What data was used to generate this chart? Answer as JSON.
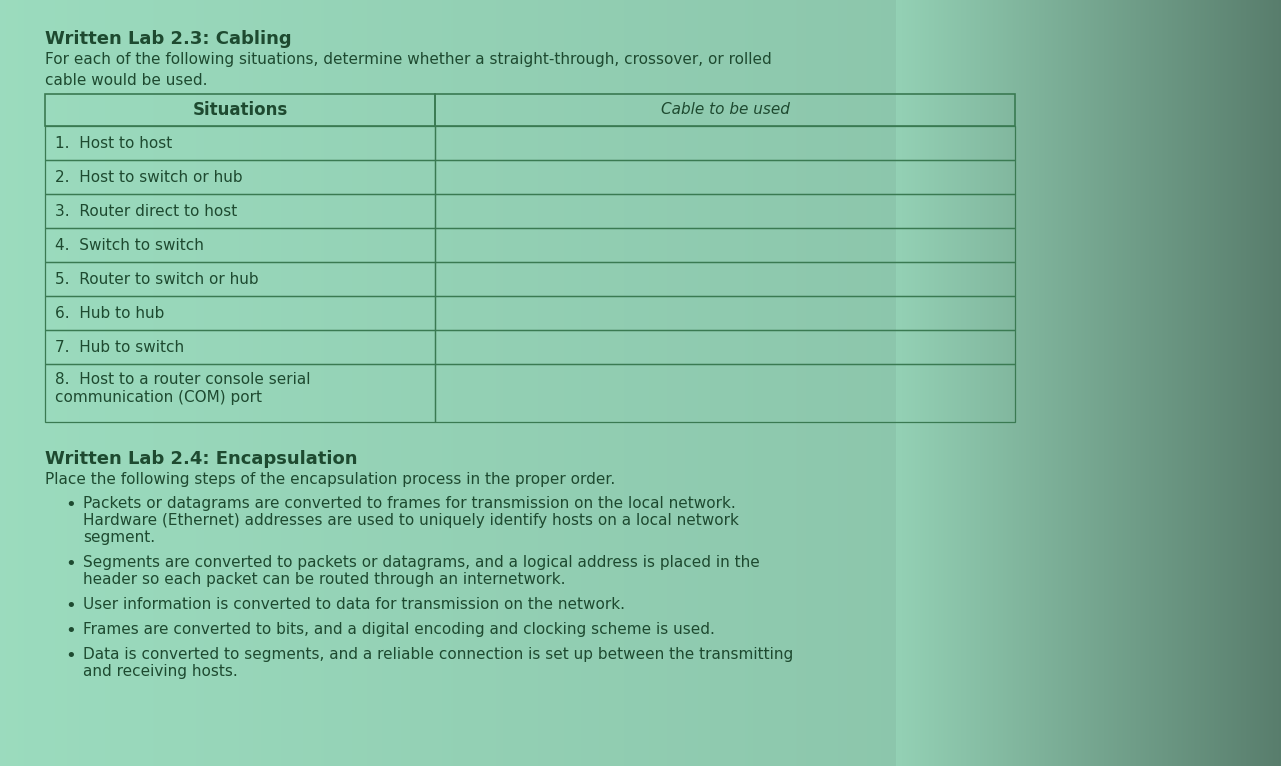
{
  "bg_color_main": "#7ecfa4",
  "bg_color_light": "#aae8c4",
  "bg_color_dark": "#4a9e6e",
  "text_color": "#1e4a30",
  "table_border_color": "#3a7a52",
  "title1": "Written Lab 2.3: Cabling",
  "subtitle1": "For each of the following situations, determine whether a straight-through, crossover, or rolled",
  "subtitle1b": "cable would be used.",
  "col1_header": "Situations",
  "col2_header": "Cable to be used",
  "rows": [
    "1.  Host to host",
    "2.  Host to switch or hub",
    "3.  Router direct to host",
    "4.  Switch to switch",
    "5.  Router to switch or hub",
    "6.  Hub to hub",
    "7.  Hub to switch",
    "8.  Host to a router console serial\ncommunication (COM) port"
  ],
  "title2": "Written Lab 2.4: Encapsulation",
  "subtitle2": "Place the following steps of the encapsulation process in the proper order.",
  "bullet1_line1": "Packets or datagrams are converted to frames for transmission on the local network.",
  "bullet1_line2": "Hardware (Ethernet) addresses are used to uniquely identify hosts on a local network",
  "bullet1_line3": "segment.",
  "bullet2_line1": "Segments are converted to packets or datagrams, and a logical address is placed in the",
  "bullet2_line2": "header so each packet can be routed through an internetwork.",
  "bullet3": "User information is converted to data for transmission on the network.",
  "bullet4": "Frames are converted to bits, and a digital encoding and clocking scheme is used.",
  "bullet5_line1": "Data is converted to segments, and a reliable connection is set up between the transmitting",
  "bullet5_line2": "and receiving hosts."
}
